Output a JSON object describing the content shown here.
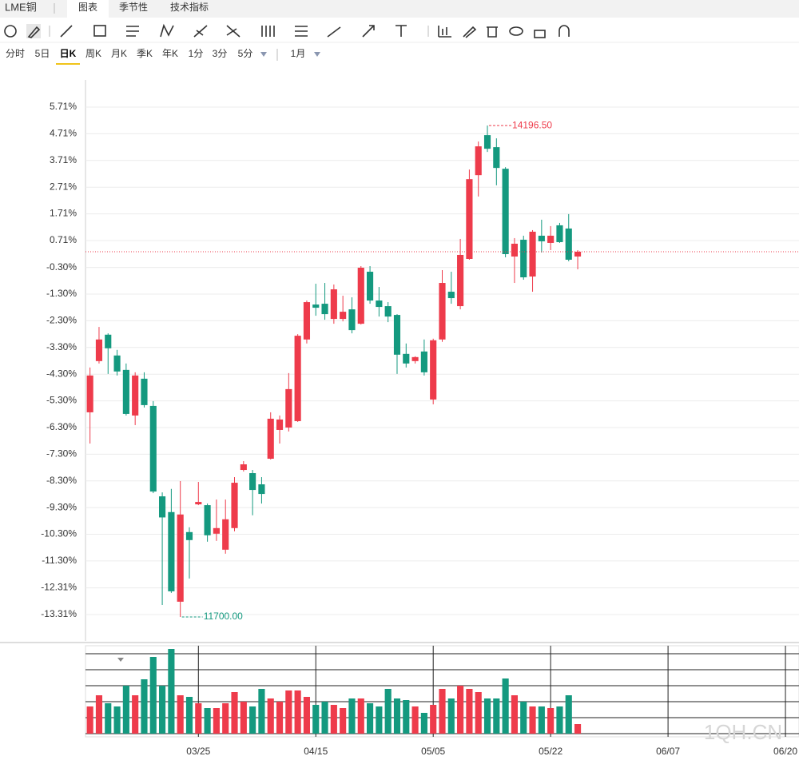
{
  "header": {
    "title": "LME铜",
    "tabs": [
      "图表",
      "季节性",
      "技术指标"
    ]
  },
  "toolbar": {
    "periods": [
      "分时",
      "5日",
      "日K",
      "周K",
      "月K",
      "季K",
      "年K",
      "1分",
      "3分",
      "5分",
      "1月"
    ],
    "selected_period": 2
  },
  "chart_data": {
    "type": "candlestick",
    "open": [
      -5.73,
      -3.81,
      -2.82,
      -3.6,
      -4.14,
      -5.85,
      -4.47,
      -5.49,
      -8.88,
      -9.47,
      -12.83,
      -10.22,
      -9.18,
      -9.21,
      -10.28,
      -10.88,
      -10.07,
      -7.89,
      -8.01,
      -8.43,
      -7.47,
      -6.39,
      -6.3,
      -6.06,
      -3.0,
      -1.69,
      -1.66,
      -2.23,
      -2.23,
      -1.87,
      -2.41,
      -0.46,
      -1.54,
      -1.75,
      -2.08,
      -3.54,
      -3.81,
      -3.45,
      -5.25,
      -3.0,
      -1.21,
      -1.75,
      0.02,
      3.16,
      4.66,
      4.21,
      3.4,
      0.11,
      0.74,
      -0.64,
      0.89,
      0.62,
      1.28,
      1.16,
      0.11
    ],
    "high": [
      -4.05,
      -2.53,
      -2.77,
      -3.39,
      -3.9,
      -4.23,
      -4.23,
      -5.31,
      -8.73,
      -8.6,
      -8.31,
      -10.04,
      -8.34,
      -9.15,
      -9.0,
      -9.0,
      -8.16,
      -7.56,
      -7.89,
      -8.16,
      -5.73,
      -5.85,
      -4.26,
      -2.8,
      -1.54,
      -0.91,
      -0.88,
      -0.94,
      -1.36,
      -1.42,
      -0.25,
      -0.25,
      -1.03,
      -1.6,
      -2.05,
      -3.15,
      -3.63,
      -3.0,
      -2.97,
      -0.4,
      -0.46,
      0.77,
      3.37,
      4.42,
      5.02,
      4.54,
      3.46,
      0.8,
      0.89,
      1.1,
      1.49,
      1.25,
      1.37,
      1.7,
      0.35
    ],
    "low": [
      -6.9,
      -3.9,
      -4.29,
      -4.35,
      -5.85,
      -6.21,
      -5.55,
      -8.76,
      -12.95,
      -12.5,
      -13.4,
      -11.96,
      -9.21,
      -10.58,
      -10.55,
      -11.03,
      -10.19,
      -7.95,
      -9.59,
      -9.15,
      -7.5,
      -6.9,
      -6.45,
      -6.09,
      -3.15,
      -2.11,
      -2.26,
      -2.41,
      -2.32,
      -2.77,
      -2.44,
      -1.66,
      -2.14,
      -2.35,
      -4.29,
      -4.05,
      -3.9,
      -4.35,
      -5.43,
      -3.09,
      -1.66,
      -1.87,
      -0.01,
      2.36,
      4.03,
      2.78,
      0.08,
      -0.88,
      -0.76,
      -1.21,
      0.26,
      0.35,
      0.62,
      -0.07,
      -0.37
    ],
    "close": [
      -4.35,
      -3.0,
      -3.33,
      -4.2,
      -5.79,
      -4.35,
      -5.46,
      -8.7,
      -9.67,
      -12.44,
      -9.56,
      -10.52,
      -9.09,
      -10.34,
      -10.07,
      -9.74,
      -8.37,
      -7.68,
      -8.64,
      -8.79,
      -5.97,
      -6.0,
      -4.86,
      -2.86,
      -1.6,
      -1.81,
      -2.05,
      -1.12,
      -1.96,
      -2.65,
      -0.31,
      -1.54,
      -1.78,
      -2.14,
      -3.57,
      -3.9,
      -3.66,
      -4.23,
      -3.03,
      -0.88,
      -1.45,
      0.17,
      3.01,
      4.24,
      4.15,
      3.43,
      0.2,
      0.59,
      -0.67,
      1.04,
      0.68,
      0.89,
      0.65,
      -0.01,
      0.29
    ],
    "volume": [
      34,
      48,
      38,
      34,
      60,
      48,
      68,
      96,
      60,
      106,
      48,
      46,
      38,
      32,
      32,
      38,
      52,
      40,
      34,
      56,
      44,
      40,
      54,
      54,
      46,
      36,
      40,
      36,
      32,
      44,
      44,
      38,
      34,
      56,
      44,
      42,
      34,
      26,
      36,
      56,
      44,
      60,
      56,
      52,
      44,
      44,
      69,
      48,
      40,
      34,
      34,
      32,
      34,
      48,
      12
    ],
    "volume_ylim": [
      0,
      110
    ],
    "up_color": "#ee3b4b",
    "down_color": "#14997f",
    "xlim": [
      -0.5,
      78.5
    ],
    "xticks": [
      {
        "value": 12,
        "label": "03/25"
      },
      {
        "value": 25,
        "label": "04/15"
      },
      {
        "value": 38,
        "label": "05/05"
      },
      {
        "value": 51,
        "label": "05/22"
      },
      {
        "value": 64,
        "label": "06/07"
      },
      {
        "value": 77,
        "label": "06/20"
      }
    ],
    "ylim": [
      -14.24,
      6.73
    ],
    "yticks": [
      {
        "value": 5.71,
        "label": "5.71%"
      },
      {
        "value": 4.71,
        "label": "4.71%"
      },
      {
        "value": 3.71,
        "label": "3.71%"
      },
      {
        "value": 2.71,
        "label": "2.71%"
      },
      {
        "value": 1.71,
        "label": "1.71%"
      },
      {
        "value": 0.71,
        "label": "0.71%"
      },
      {
        "value": -0.3,
        "label": "-0.30%"
      },
      {
        "value": -1.3,
        "label": "-1.30%"
      },
      {
        "value": -2.3,
        "label": "-2.30%"
      },
      {
        "value": -3.3,
        "label": "-3.30%"
      },
      {
        "value": -4.3,
        "label": "-4.30%"
      },
      {
        "value": -5.3,
        "label": "-5.30%"
      },
      {
        "value": -6.3,
        "label": "-6.30%"
      },
      {
        "value": -7.3,
        "label": "-7.30%"
      },
      {
        "value": -8.3,
        "label": "-8.30%"
      },
      {
        "value": -9.3,
        "label": "-9.30%"
      },
      {
        "value": -10.3,
        "label": "-10.30%"
      },
      {
        "value": -11.3,
        "label": "-11.30%"
      },
      {
        "value": -12.31,
        "label": "-12.31%"
      },
      {
        "value": -13.31,
        "label": "-13.31%"
      }
    ],
    "grid": true,
    "high_label": "14196.50",
    "low_label": "11700.00",
    "last_price_line": true,
    "watermark": "1QH.CN"
  }
}
